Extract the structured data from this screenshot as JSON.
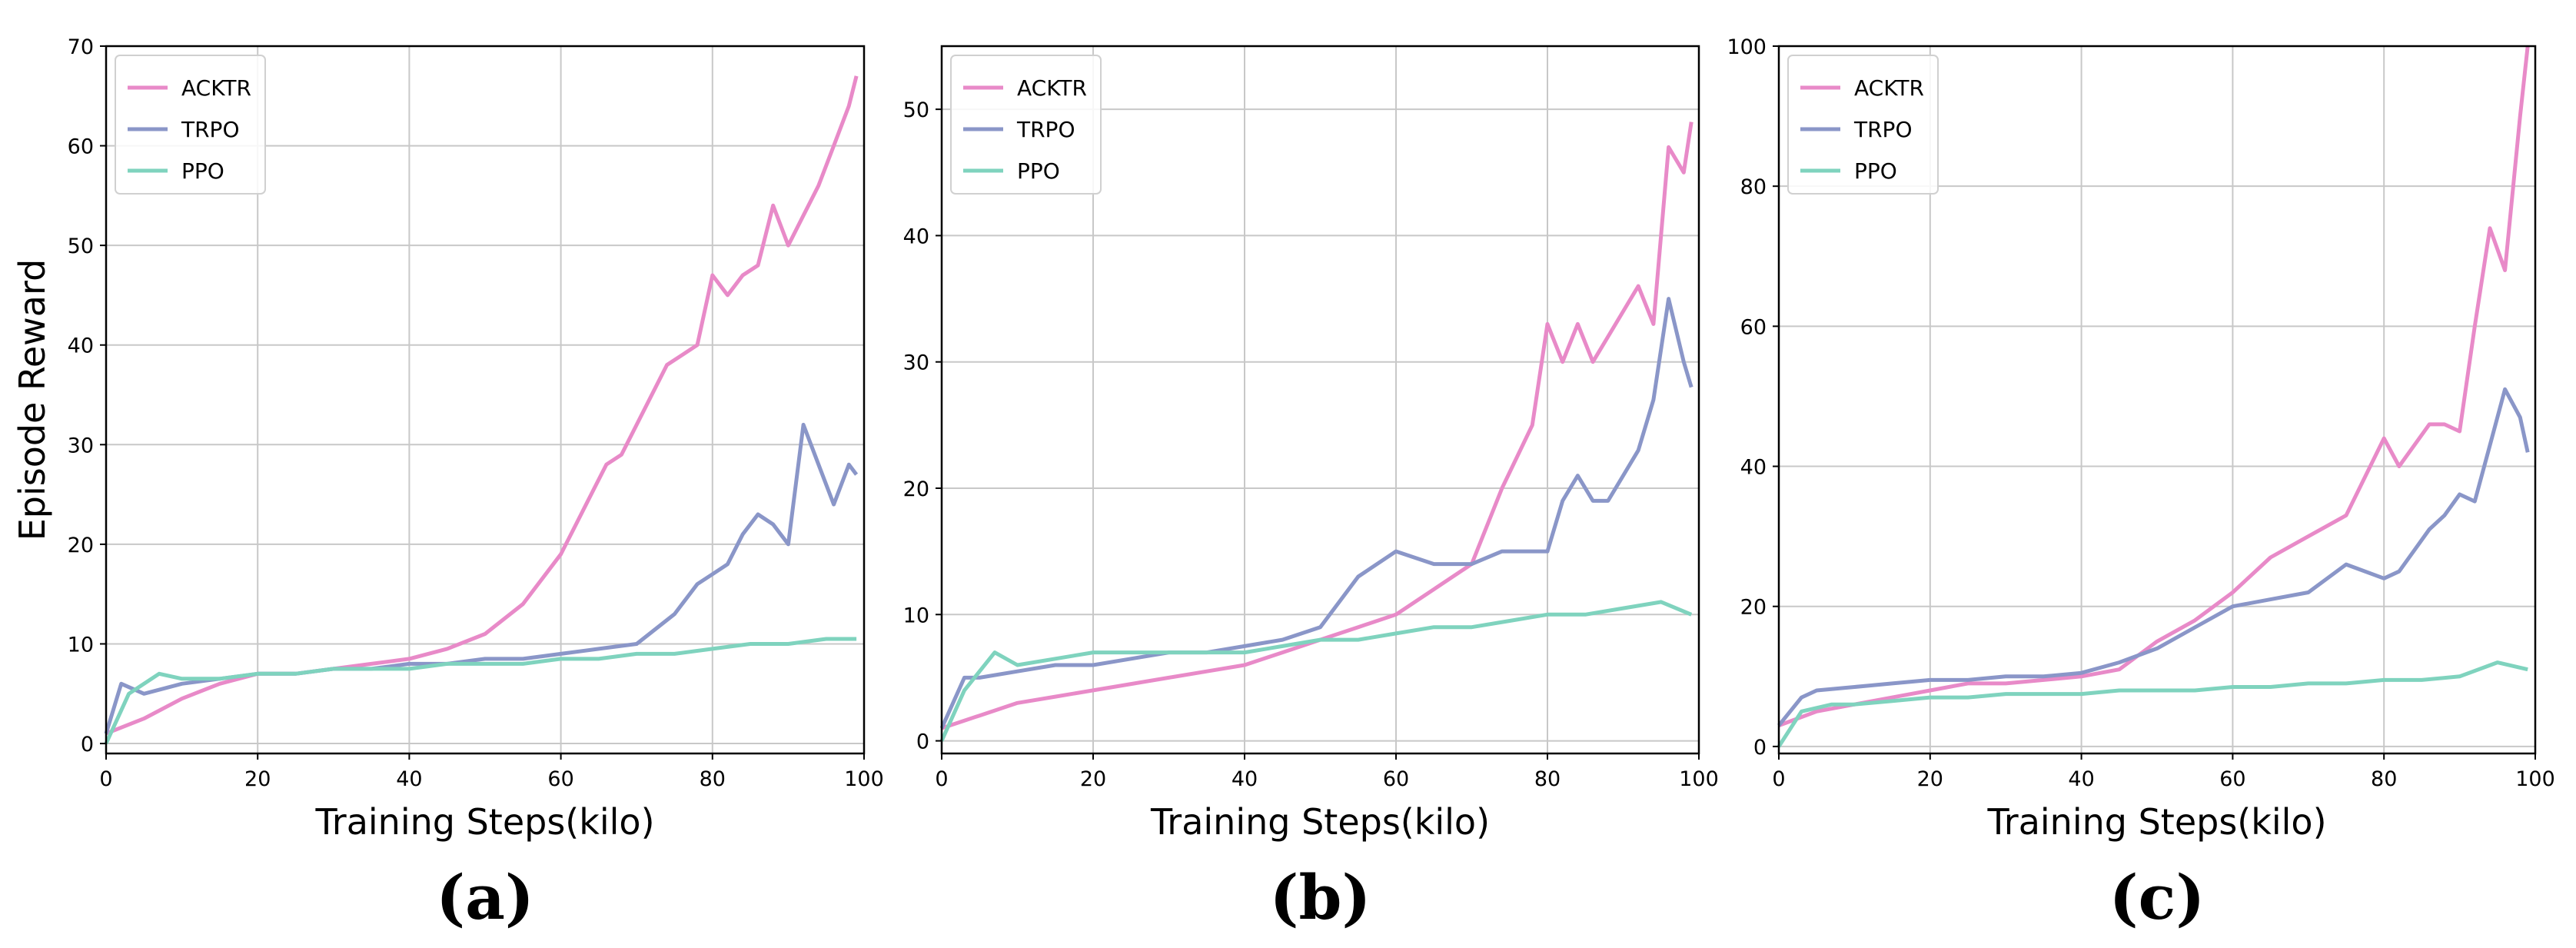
{
  "chart_data": [
    {
      "type": "line",
      "caption": "(a)",
      "xlabel": "Training Steps(kilo)",
      "ylabel": "Episode Reward",
      "xlim": [
        0,
        100
      ],
      "ylim": [
        -1,
        70
      ],
      "xticks": [
        0,
        20,
        40,
        60,
        80,
        100
      ],
      "yticks": [
        0,
        10,
        20,
        30,
        40,
        50,
        60,
        70
      ],
      "grid": true,
      "legend_position": "top-left",
      "series": [
        {
          "name": "ACKTR",
          "color": "#e88ac8",
          "x": [
            0,
            5,
            10,
            15,
            20,
            25,
            30,
            35,
            40,
            45,
            50,
            55,
            60,
            62,
            64,
            66,
            68,
            70,
            72,
            74,
            76,
            78,
            80,
            82,
            84,
            86,
            88,
            90,
            92,
            94,
            96,
            98,
            99
          ],
          "y": [
            1,
            2.5,
            4.5,
            6,
            7,
            7,
            7.5,
            8,
            8.5,
            9.5,
            11,
            14,
            19,
            22,
            25,
            28,
            29,
            32,
            35,
            38,
            39,
            40,
            47,
            45,
            47,
            48,
            54,
            50,
            53,
            56,
            60,
            64,
            67
          ]
        },
        {
          "name": "TRPO",
          "color": "#8a96c8",
          "x": [
            0,
            2,
            5,
            10,
            15,
            20,
            25,
            30,
            35,
            40,
            45,
            50,
            55,
            60,
            65,
            70,
            75,
            78,
            80,
            82,
            84,
            86,
            88,
            90,
            92,
            94,
            96,
            98,
            99
          ],
          "y": [
            1,
            6,
            5,
            6,
            6.5,
            7,
            7,
            7.5,
            7.5,
            8,
            8,
            8.5,
            8.5,
            9,
            9.5,
            10,
            13,
            16,
            17,
            18,
            21,
            23,
            22,
            20,
            32,
            28,
            24,
            28,
            27
          ]
        },
        {
          "name": "PPO",
          "color": "#7fd3be",
          "x": [
            0,
            3,
            7,
            10,
            15,
            20,
            25,
            30,
            35,
            40,
            45,
            50,
            55,
            60,
            65,
            70,
            75,
            80,
            85,
            90,
            95,
            99
          ],
          "y": [
            0,
            5,
            7,
            6.5,
            6.5,
            7,
            7,
            7.5,
            7.5,
            7.5,
            8,
            8,
            8,
            8.5,
            8.5,
            9,
            9,
            9.5,
            10,
            10,
            10.5,
            10.5
          ]
        }
      ]
    },
    {
      "type": "line",
      "caption": "(b)",
      "xlabel": "Training Steps(kilo)",
      "ylabel": "",
      "xlim": [
        0,
        100
      ],
      "ylim": [
        -1,
        55
      ],
      "xticks": [
        0,
        20,
        40,
        60,
        80,
        100
      ],
      "yticks": [
        0,
        10,
        20,
        30,
        40,
        50
      ],
      "grid": true,
      "legend_position": "top-left",
      "series": [
        {
          "name": "ACKTR",
          "color": "#e88ac8",
          "x": [
            0,
            5,
            10,
            15,
            20,
            25,
            30,
            35,
            40,
            45,
            50,
            55,
            60,
            65,
            70,
            74,
            78,
            80,
            82,
            84,
            86,
            88,
            90,
            92,
            94,
            96,
            98,
            99
          ],
          "y": [
            1,
            2,
            3,
            3.5,
            4,
            4.5,
            5,
            5.5,
            6,
            7,
            8,
            9,
            10,
            12,
            14,
            20,
            25,
            33,
            30,
            33,
            30,
            32,
            34,
            36,
            33,
            47,
            45,
            49
          ]
        },
        {
          "name": "TRPO",
          "color": "#8a96c8",
          "x": [
            0,
            3,
            5,
            10,
            15,
            20,
            25,
            30,
            35,
            40,
            45,
            50,
            55,
            60,
            65,
            70,
            74,
            78,
            80,
            82,
            84,
            86,
            88,
            90,
            92,
            94,
            96,
            98,
            99
          ],
          "y": [
            1,
            5,
            5,
            5.5,
            6,
            6,
            6.5,
            7,
            7,
            7.5,
            8,
            9,
            13,
            15,
            14,
            14,
            15,
            15,
            15,
            19,
            21,
            19,
            19,
            21,
            23,
            27,
            35,
            30,
            28
          ]
        },
        {
          "name": "PPO",
          "color": "#7fd3be",
          "x": [
            0,
            3,
            7,
            10,
            15,
            20,
            25,
            30,
            35,
            40,
            45,
            50,
            55,
            60,
            65,
            70,
            75,
            80,
            85,
            90,
            95,
            99
          ],
          "y": [
            0,
            4,
            7,
            6,
            6.5,
            7,
            7,
            7,
            7,
            7,
            7.5,
            8,
            8,
            8.5,
            9,
            9,
            9.5,
            10,
            10,
            10.5,
            11,
            10
          ]
        }
      ]
    },
    {
      "type": "line",
      "caption": "(c)",
      "xlabel": "Training Steps(kilo)",
      "ylabel": "",
      "xlim": [
        0,
        100
      ],
      "ylim": [
        -1,
        100
      ],
      "xticks": [
        0,
        20,
        40,
        60,
        80,
        100
      ],
      "yticks": [
        0,
        20,
        40,
        60,
        80,
        100
      ],
      "grid": true,
      "legend_position": "top-left",
      "series": [
        {
          "name": "ACKTR",
          "color": "#e88ac8",
          "x": [
            0,
            5,
            10,
            15,
            20,
            25,
            30,
            35,
            40,
            45,
            50,
            55,
            60,
            65,
            70,
            75,
            80,
            82,
            84,
            86,
            88,
            90,
            92,
            94,
            96,
            98,
            99
          ],
          "y": [
            3,
            5,
            6,
            7,
            8,
            9,
            9,
            9.5,
            10,
            11,
            15,
            18,
            22,
            27,
            30,
            33,
            44,
            40,
            43,
            46,
            46,
            45,
            60,
            74,
            68,
            90,
            100
          ]
        },
        {
          "name": "TRPO",
          "color": "#8a96c8",
          "x": [
            0,
            3,
            5,
            10,
            15,
            20,
            25,
            30,
            35,
            40,
            45,
            50,
            55,
            60,
            65,
            70,
            75,
            80,
            82,
            84,
            86,
            88,
            90,
            92,
            94,
            96,
            98,
            99
          ],
          "y": [
            3,
            7,
            8,
            8.5,
            9,
            9.5,
            9.5,
            10,
            10,
            10.5,
            12,
            14,
            17,
            20,
            21,
            22,
            26,
            24,
            25,
            28,
            31,
            33,
            36,
            35,
            43,
            51,
            47,
            42
          ]
        },
        {
          "name": "PPO",
          "color": "#7fd3be",
          "x": [
            0,
            3,
            7,
            10,
            15,
            20,
            25,
            30,
            35,
            40,
            45,
            50,
            55,
            60,
            65,
            70,
            75,
            80,
            85,
            90,
            95,
            99
          ],
          "y": [
            0,
            5,
            6,
            6,
            6.5,
            7,
            7,
            7.5,
            7.5,
            7.5,
            8,
            8,
            8,
            8.5,
            8.5,
            9,
            9,
            9.5,
            9.5,
            10,
            12,
            11
          ]
        }
      ]
    }
  ]
}
